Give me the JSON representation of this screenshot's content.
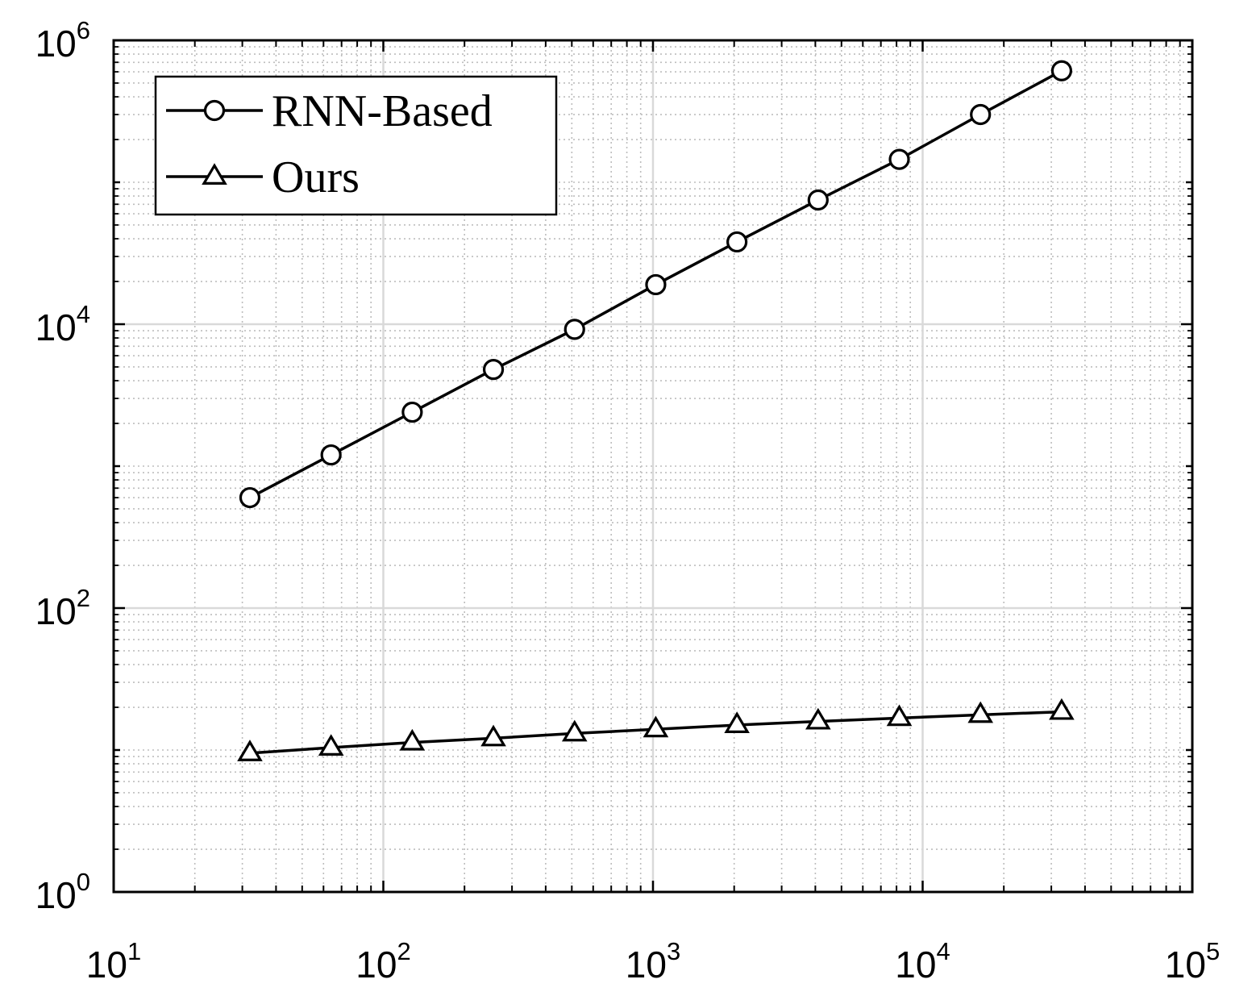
{
  "chart_data": {
    "type": "line",
    "title": "",
    "xlabel": "",
    "ylabel": "",
    "xscale": "log",
    "yscale": "log",
    "xlim": [
      10,
      100000
    ],
    "ylim": [
      1,
      1000000
    ],
    "grid": true,
    "minor_grid": true,
    "legend_position": "top-left",
    "x_ticks": [
      {
        "base": "10",
        "exp": "1"
      },
      {
        "base": "10",
        "exp": "2"
      },
      {
        "base": "10",
        "exp": "3"
      },
      {
        "base": "10",
        "exp": "4"
      },
      {
        "base": "10",
        "exp": "5"
      }
    ],
    "y_ticks": [
      {
        "base": "10",
        "exp": "0"
      },
      {
        "base": "10",
        "exp": "2"
      },
      {
        "base": "10",
        "exp": "4"
      },
      {
        "base": "10",
        "exp": "6"
      }
    ],
    "x": [
      32,
      64,
      128,
      256,
      512,
      1024,
      2048,
      4096,
      8192,
      16384,
      32768
    ],
    "series": [
      {
        "name": "RNN-Based",
        "marker": "circle",
        "color": "#000000",
        "values": [
          600,
          1200,
          2400,
          4800,
          9200,
          19000,
          38000,
          75000,
          145000,
          300000,
          610000
        ]
      },
      {
        "name": "Ours",
        "marker": "triangle",
        "color": "#000000",
        "values": [
          9.5,
          10.4,
          11.3,
          12.1,
          13.1,
          14.0,
          15.0,
          15.9,
          16.8,
          17.7,
          18.6
        ]
      }
    ]
  }
}
